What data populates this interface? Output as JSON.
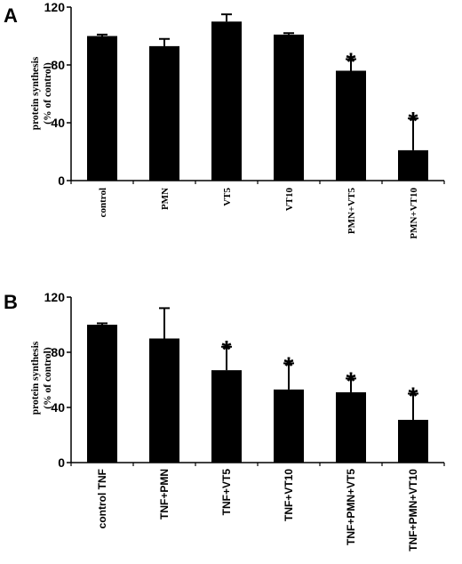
{
  "chart_data": [
    {
      "panel": "A",
      "type": "bar",
      "ylabel_line1": "protein synthesis",
      "ylabel_line2": "(% of control)",
      "ylim": [
        0,
        120
      ],
      "yticks": [
        "0",
        "40",
        "80",
        "120"
      ],
      "categories": [
        "control",
        "PMN",
        "VT5",
        "VT10",
        "PMN+VT5",
        "PMN+VT10"
      ],
      "values": [
        100,
        93,
        110,
        101,
        76,
        21
      ],
      "errors": [
        1,
        5,
        5,
        1,
        8,
        22
      ],
      "significant": [
        false,
        false,
        false,
        false,
        true,
        true
      ],
      "significance_marker": "*"
    },
    {
      "panel": "B",
      "type": "bar",
      "ylabel_line1": "protein synthesis",
      "ylabel_line2": "(% of control)",
      "ylim": [
        0,
        120
      ],
      "yticks": [
        "0",
        "40",
        "80",
        "120"
      ],
      "categories": [
        "control TNF",
        "TNF+PMN",
        "TNF+VT5",
        "TNF+VT10",
        "TNF+PMN+VT5",
        "TNF+PMN+VT10"
      ],
      "values": [
        100,
        90,
        67,
        53,
        51,
        31
      ],
      "errors": [
        1,
        22,
        17,
        19,
        10,
        19
      ],
      "significant": [
        false,
        false,
        true,
        true,
        true,
        true
      ],
      "significance_marker": "*"
    }
  ]
}
